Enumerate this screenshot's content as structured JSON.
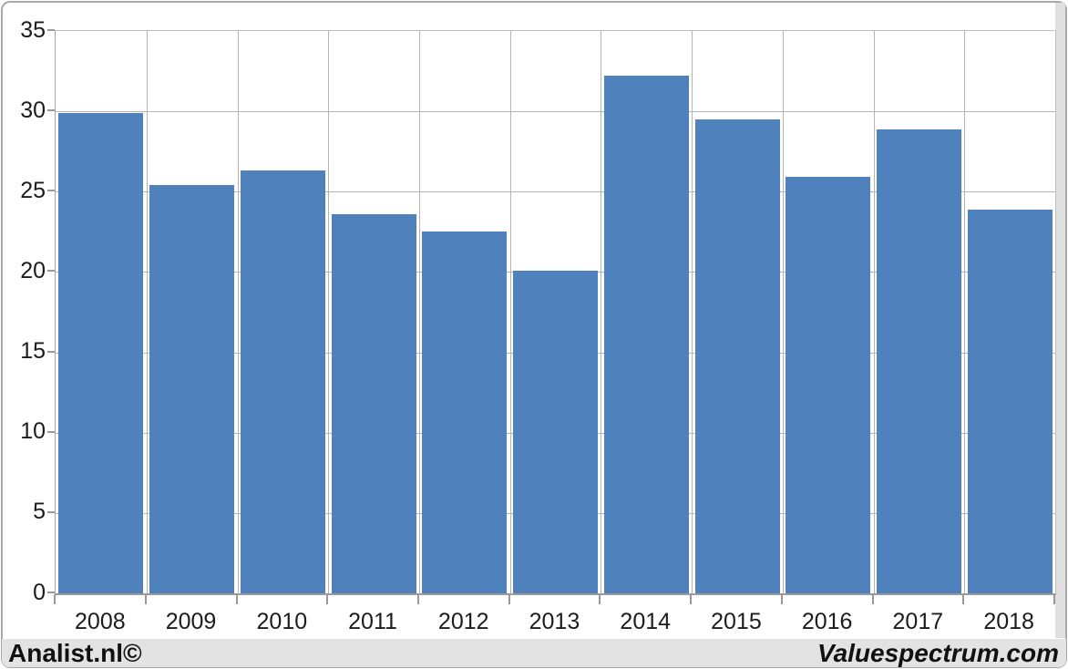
{
  "footer": {
    "brand_left": "Analist.nl©",
    "brand_right": "Valuespectrum.com"
  },
  "chart_data": {
    "type": "bar",
    "title": "",
    "xlabel": "",
    "ylabel": "",
    "categories": [
      "2008",
      "2009",
      "2010",
      "2011",
      "2012",
      "2013",
      "2014",
      "2015",
      "2016",
      "2017",
      "2018"
    ],
    "values": [
      29.9,
      25.4,
      26.3,
      23.6,
      22.5,
      20.1,
      32.2,
      29.5,
      25.9,
      28.9,
      23.9
    ],
    "ylim": [
      0,
      35
    ],
    "ytick_step": 5,
    "ytick_labels": [
      "0",
      "5",
      "10",
      "15",
      "20",
      "25",
      "30",
      "35"
    ],
    "grid": true,
    "legend": false,
    "colors": {
      "bar": "#4f81bd",
      "gridline": "#b3b3b3",
      "axis": "#9a9a9a",
      "plot_border": "#bfbfbf",
      "text": "#1c1c1c",
      "footer_background": "#e3e3e3",
      "window_border": "#a9a9a9"
    }
  }
}
